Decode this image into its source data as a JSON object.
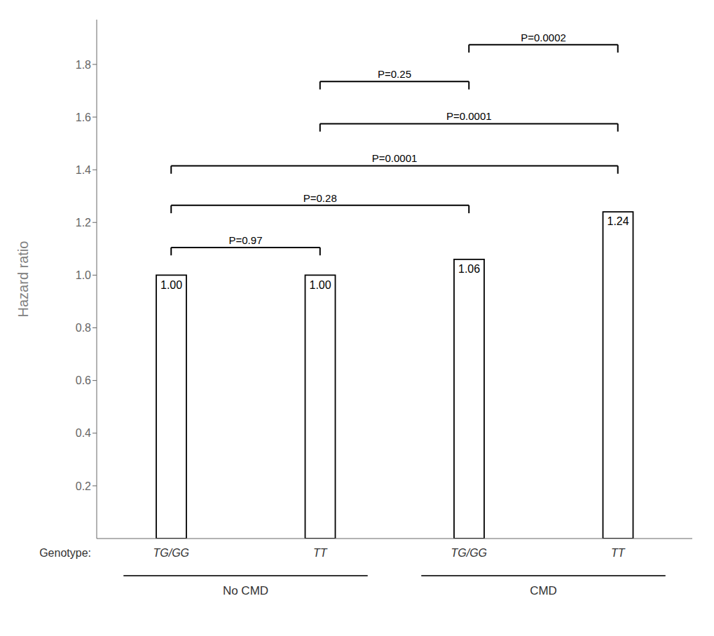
{
  "chart_data": {
    "type": "bar",
    "categories": [
      "TG/GG",
      "TT",
      "TG/GG",
      "TT"
    ],
    "values": [
      1.0,
      1.0,
      1.06,
      1.24
    ],
    "value_labels": [
      "1.00",
      "1.00",
      "1.06",
      "1.24"
    ],
    "data_labels": true,
    "color": "white",
    "ylabel": "Hazard ratio",
    "ylim": [
      0,
      1.97
    ],
    "yticks": [
      0.2,
      0.4,
      0.6,
      0.8,
      {
        "value": 1.0,
        "label": "1.0"
      },
      1.2,
      1.4,
      1.6,
      1.8
    ],
    "grid": false,
    "category_prefix": "Genotype:",
    "groups": [
      {
        "label": "No CMD",
        "members": [
          0,
          1
        ]
      },
      {
        "label": "CMD",
        "members": [
          2,
          3
        ]
      }
    ],
    "annotations": [
      {
        "text": "P=0.97",
        "from": 0,
        "to": 1,
        "y": 1.105
      },
      {
        "text": "P=0.28",
        "from": 0,
        "to": 2,
        "y": 1.265
      },
      {
        "text": "P=0.25",
        "from": 1,
        "to": 2,
        "y": 1.735
      },
      {
        "text": "P=0.0001",
        "from": 1,
        "to": 3,
        "y": 1.575
      },
      {
        "text": "P=0.0001",
        "from": 0,
        "to": 3,
        "y": 1.415
      },
      {
        "text": "P=0.0002",
        "from": 2,
        "to": 3,
        "y": 1.875
      }
    ]
  }
}
